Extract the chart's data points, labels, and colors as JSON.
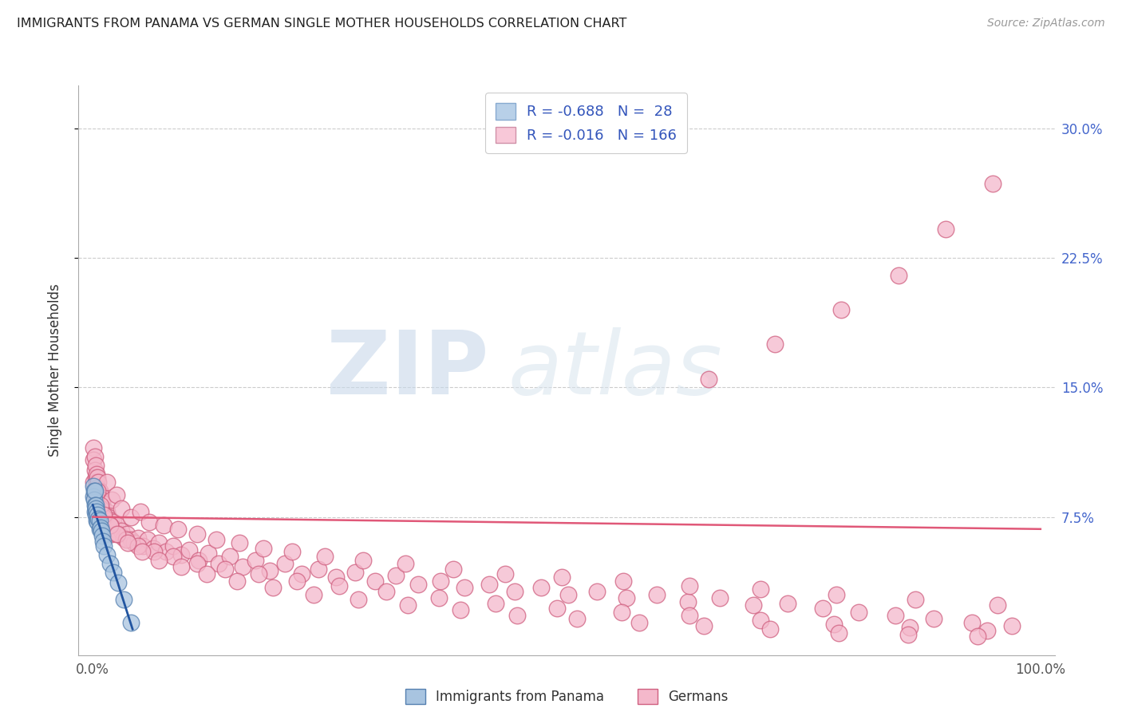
{
  "title": "IMMIGRANTS FROM PANAMA VS GERMAN SINGLE MOTHER HOUSEHOLDS CORRELATION CHART",
  "source": "Source: ZipAtlas.com",
  "ylabel": "Single Mother Households",
  "yticks": [
    "7.5%",
    "15.0%",
    "22.5%",
    "30.0%"
  ],
  "ytick_vals": [
    0.075,
    0.15,
    0.225,
    0.3
  ],
  "blue_color": "#a8c4e0",
  "blue_edge_color": "#5580b0",
  "pink_color": "#f4b8cb",
  "pink_edge_color": "#d06080",
  "blue_line_color": "#2255a0",
  "pink_line_color": "#e05878",
  "legend_box_blue": "#b8d0e8",
  "legend_box_pink": "#f8c8d8",
  "xlim": [
    -0.015,
    1.015
  ],
  "ylim": [
    -0.005,
    0.325
  ],
  "background_color": "#ffffff",
  "grid_color": "#cccccc",
  "blue_x": [
    0.0008,
    0.001,
    0.0012,
    0.0015,
    0.002,
    0.002,
    0.0025,
    0.003,
    0.003,
    0.0035,
    0.004,
    0.004,
    0.005,
    0.005,
    0.006,
    0.007,
    0.007,
    0.008,
    0.009,
    0.01,
    0.011,
    0.012,
    0.015,
    0.018,
    0.022,
    0.027,
    0.033,
    0.04
  ],
  "blue_y": [
    0.093,
    0.087,
    0.09,
    0.085,
    0.09,
    0.078,
    0.082,
    0.082,
    0.076,
    0.08,
    0.078,
    0.073,
    0.076,
    0.072,
    0.074,
    0.073,
    0.068,
    0.069,
    0.067,
    0.064,
    0.061,
    0.058,
    0.053,
    0.048,
    0.043,
    0.037,
    0.027,
    0.014
  ],
  "pink_x": [
    0.001,
    0.001,
    0.001,
    0.002,
    0.002,
    0.002,
    0.003,
    0.003,
    0.003,
    0.004,
    0.004,
    0.004,
    0.005,
    0.005,
    0.005,
    0.006,
    0.006,
    0.007,
    0.007,
    0.008,
    0.008,
    0.009,
    0.009,
    0.01,
    0.01,
    0.011,
    0.012,
    0.013,
    0.014,
    0.015,
    0.016,
    0.017,
    0.018,
    0.019,
    0.02,
    0.022,
    0.024,
    0.026,
    0.028,
    0.03,
    0.033,
    0.036,
    0.04,
    0.044,
    0.048,
    0.053,
    0.058,
    0.064,
    0.07,
    0.077,
    0.085,
    0.093,
    0.102,
    0.112,
    0.122,
    0.133,
    0.145,
    0.158,
    0.172,
    0.187,
    0.203,
    0.22,
    0.238,
    0.257,
    0.277,
    0.298,
    0.32,
    0.343,
    0.367,
    0.392,
    0.418,
    0.445,
    0.473,
    0.502,
    0.532,
    0.563,
    0.595,
    0.628,
    0.662,
    0.697,
    0.733,
    0.77,
    0.808,
    0.847,
    0.887,
    0.928,
    0.97,
    0.015,
    0.02,
    0.025,
    0.03,
    0.04,
    0.05,
    0.06,
    0.075,
    0.09,
    0.11,
    0.13,
    0.155,
    0.18,
    0.21,
    0.245,
    0.285,
    0.33,
    0.38,
    0.435,
    0.495,
    0.56,
    0.63,
    0.705,
    0.785,
    0.868,
    0.955,
    0.008,
    0.012,
    0.018,
    0.025,
    0.035,
    0.048,
    0.065,
    0.085,
    0.11,
    0.14,
    0.175,
    0.215,
    0.26,
    0.31,
    0.365,
    0.425,
    0.49,
    0.558,
    0.63,
    0.705,
    0.782,
    0.862,
    0.944,
    0.005,
    0.008,
    0.012,
    0.018,
    0.026,
    0.037,
    0.052,
    0.07,
    0.093,
    0.12,
    0.152,
    0.19,
    0.233,
    0.28,
    0.332,
    0.388,
    0.448,
    0.511,
    0.577,
    0.645,
    0.715,
    0.787,
    0.86,
    0.934,
    0.65,
    0.72,
    0.79,
    0.85,
    0.9,
    0.95
  ],
  "pink_y": [
    0.115,
    0.095,
    0.108,
    0.11,
    0.088,
    0.102,
    0.105,
    0.085,
    0.098,
    0.1,
    0.082,
    0.095,
    0.098,
    0.078,
    0.092,
    0.095,
    0.075,
    0.09,
    0.08,
    0.088,
    0.072,
    0.085,
    0.075,
    0.083,
    0.07,
    0.08,
    0.077,
    0.075,
    0.072,
    0.078,
    0.07,
    0.075,
    0.068,
    0.073,
    0.065,
    0.072,
    0.068,
    0.07,
    0.065,
    0.067,
    0.063,
    0.065,
    0.062,
    0.06,
    0.063,
    0.058,
    0.062,
    0.057,
    0.06,
    0.055,
    0.058,
    0.053,
    0.056,
    0.05,
    0.054,
    0.048,
    0.052,
    0.046,
    0.05,
    0.044,
    0.048,
    0.042,
    0.045,
    0.04,
    0.043,
    0.038,
    0.041,
    0.036,
    0.038,
    0.034,
    0.036,
    0.032,
    0.034,
    0.03,
    0.032,
    0.028,
    0.03,
    0.026,
    0.028,
    0.024,
    0.025,
    0.022,
    0.02,
    0.018,
    0.016,
    0.014,
    0.012,
    0.095,
    0.085,
    0.088,
    0.08,
    0.075,
    0.078,
    0.072,
    0.07,
    0.068,
    0.065,
    0.062,
    0.06,
    0.057,
    0.055,
    0.052,
    0.05,
    0.048,
    0.045,
    0.042,
    0.04,
    0.038,
    0.035,
    0.033,
    0.03,
    0.027,
    0.024,
    0.08,
    0.075,
    0.07,
    0.065,
    0.062,
    0.058,
    0.055,
    0.052,
    0.048,
    0.045,
    0.042,
    0.038,
    0.035,
    0.032,
    0.028,
    0.025,
    0.022,
    0.02,
    0.018,
    0.015,
    0.013,
    0.011,
    0.009,
    0.09,
    0.082,
    0.076,
    0.07,
    0.065,
    0.06,
    0.055,
    0.05,
    0.046,
    0.042,
    0.038,
    0.034,
    0.03,
    0.027,
    0.024,
    0.021,
    0.018,
    0.016,
    0.014,
    0.012,
    0.01,
    0.008,
    0.007,
    0.006,
    0.155,
    0.175,
    0.195,
    0.215,
    0.242,
    0.268
  ],
  "blue_line_x": [
    0.0,
    0.042
  ],
  "blue_line_y": [
    0.082,
    0.01
  ],
  "pink_line_x": [
    0.0,
    1.0
  ],
  "pink_line_y": [
    0.075,
    0.068
  ]
}
